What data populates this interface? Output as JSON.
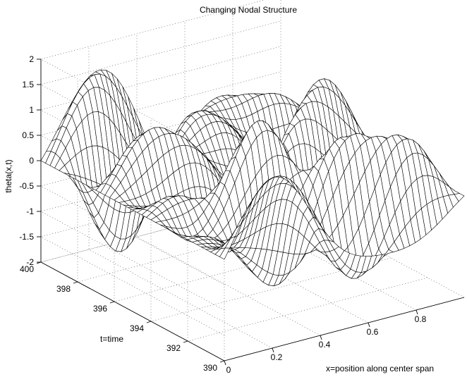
{
  "chart_data": {
    "type": "surface",
    "title": "Changing Nodal Structure",
    "xlabel": "x=position along center span",
    "ylabel": "t=time",
    "zlabel": "theta(x,t)",
    "x_ticks": [
      "0",
      "0.2",
      "0.4",
      "0.6",
      "0.8"
    ],
    "y_ticks": [
      "390",
      "392",
      "394",
      "396",
      "398",
      "400"
    ],
    "z_ticks": [
      "2",
      "1.5",
      "1",
      "0.5",
      "0",
      "-0.5",
      "-1",
      "-1.5",
      "-2"
    ],
    "xlim": [
      0,
      1
    ],
    "ylim": [
      390,
      400
    ],
    "zlim": [
      -2,
      2
    ],
    "grid": true,
    "mesh_color": "#000000",
    "surface_fill": "#ffffff"
  }
}
